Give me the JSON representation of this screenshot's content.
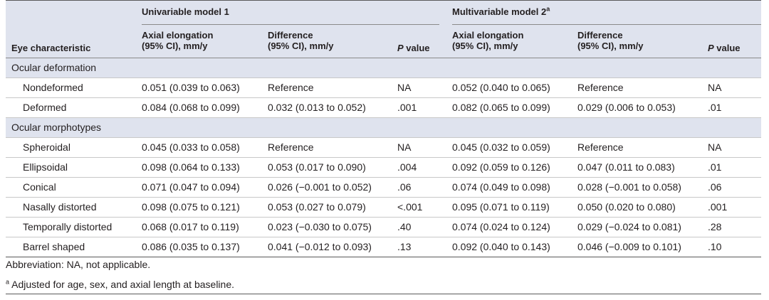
{
  "header": {
    "col_eye": "Eye characteristic",
    "group1": "Univariable model 1",
    "group2": "Multivariable model 2",
    "group2_sup": "a",
    "axial_l1": "Axial elongation",
    "axial_l2": "(95% CI), mm/y",
    "diff_l1": "Difference",
    "diff_l2": "(95% CI), mm/y",
    "p_italic": "P",
    "p_rest": " value"
  },
  "sections": [
    {
      "title": "Ocular deformation",
      "rows": [
        {
          "label": "Nondeformed",
          "u_axial": "0.051 (0.039 to 0.063)",
          "u_diff": "Reference",
          "u_p": "NA",
          "m_axial": "0.052 (0.040 to 0.065)",
          "m_diff": "Reference",
          "m_p": "NA"
        },
        {
          "label": "Deformed",
          "u_axial": "0.084 (0.068 to 0.099)",
          "u_diff": "0.032 (0.013 to 0.052)",
          "u_p": ".001",
          "m_axial": "0.082 (0.065 to 0.099)",
          "m_diff": "0.029 (0.006 to 0.053)",
          "m_p": ".01"
        }
      ]
    },
    {
      "title": "Ocular morphotypes",
      "rows": [
        {
          "label": "Spheroidal",
          "u_axial": "0.045 (0.033 to 0.058)",
          "u_diff": "Reference",
          "u_p": "NA",
          "m_axial": "0.045 (0.032 to 0.059)",
          "m_diff": "Reference",
          "m_p": "NA"
        },
        {
          "label": "Ellipsoidal",
          "u_axial": "0.098 (0.064 to 0.133)",
          "u_diff": "0.053 (0.017 to 0.090)",
          "u_p": ".004",
          "m_axial": "0.092 (0.059 to 0.126)",
          "m_diff": "0.047 (0.011 to 0.083)",
          "m_p": ".01"
        },
        {
          "label": "Conical",
          "u_axial": "0.071 (0.047 to 0.094)",
          "u_diff": "0.026 (−0.001 to 0.052)",
          "u_p": ".06",
          "m_axial": "0.074 (0.049 to 0.098)",
          "m_diff": "0.028 (−0.001 to 0.058)",
          "m_p": ".06"
        },
        {
          "label": "Nasally distorted",
          "u_axial": "0.098 (0.075 to 0.121)",
          "u_diff": "0.053 (0.027 to 0.079)",
          "u_p": "<.001",
          "m_axial": "0.095 (0.071 to 0.119)",
          "m_diff": "0.050 (0.020 to 0.080)",
          "m_p": ".001"
        },
        {
          "label": "Temporally distorted",
          "u_axial": "0.068 (0.017 to 0.119)",
          "u_diff": "0.023 (−0.030 to 0.075)",
          "u_p": ".40",
          "m_axial": "0.074 (0.024 to 0.124)",
          "m_diff": "0.029 (−0.024 to 0.081)",
          "m_p": ".28"
        },
        {
          "label": "Barrel shaped",
          "u_axial": "0.086 (0.035 to 0.137)",
          "u_diff": "0.041 (−0.012 to 0.093)",
          "u_p": ".13",
          "m_axial": "0.092 (0.040 to 0.143)",
          "m_diff": "0.046 (−0.009 to 0.101)",
          "m_p": ".10"
        }
      ]
    }
  ],
  "footnotes": {
    "abbreviation": "Abbreviation: NA, not applicable.",
    "a_mark": "a",
    "a_text": " Adjusted for age, sex, and axial length at baseline."
  }
}
